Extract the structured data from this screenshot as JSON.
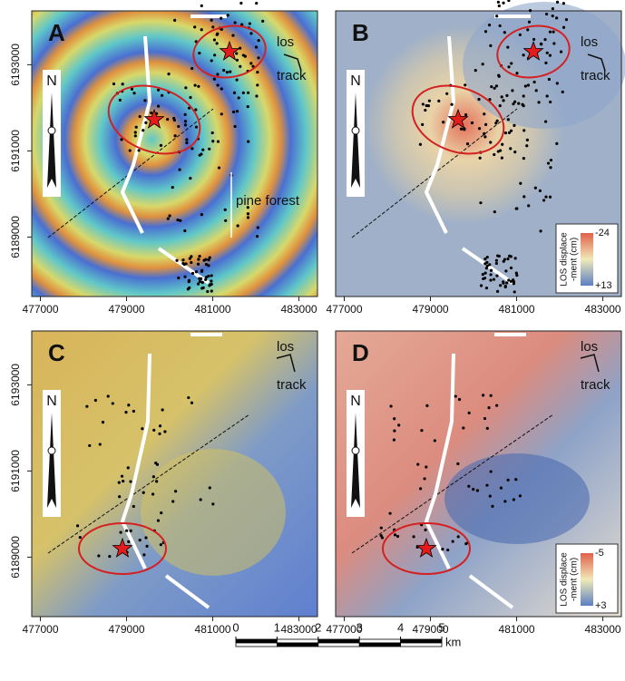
{
  "figure": {
    "axes": {
      "xlim": [
        476800,
        483430
      ],
      "ylim": [
        6187620,
        6194250
      ],
      "xticks": [
        477000,
        479000,
        481000,
        483000
      ],
      "yticks": [
        6189000,
        6191000,
        6193000
      ]
    },
    "panels": [
      {
        "label": "A",
        "north": "N",
        "los": "los",
        "track": "track",
        "note": "pine forest"
      },
      {
        "label": "B",
        "north": "N",
        "los": "los",
        "track": "track",
        "colorbar": {
          "title": [
            "LOS displace",
            "-ment (cm)"
          ],
          "ticks": [
            -24,
            {
              "value": 13,
              "label": "+13"
            }
          ]
        }
      },
      {
        "label": "C",
        "north": "N",
        "los": "los",
        "track": "track"
      },
      {
        "label": "D",
        "north": "N",
        "los": "los",
        "track": "track",
        "colorbar": {
          "title": [
            "LOS displace",
            "-ment (cm)"
          ],
          "ticks": [
            -5,
            {
              "value": 3,
              "label": "+3"
            }
          ]
        }
      }
    ],
    "scale_bar": {
      "ticks": [
        0,
        1,
        2,
        3,
        4,
        5
      ],
      "unit": "km"
    }
  }
}
